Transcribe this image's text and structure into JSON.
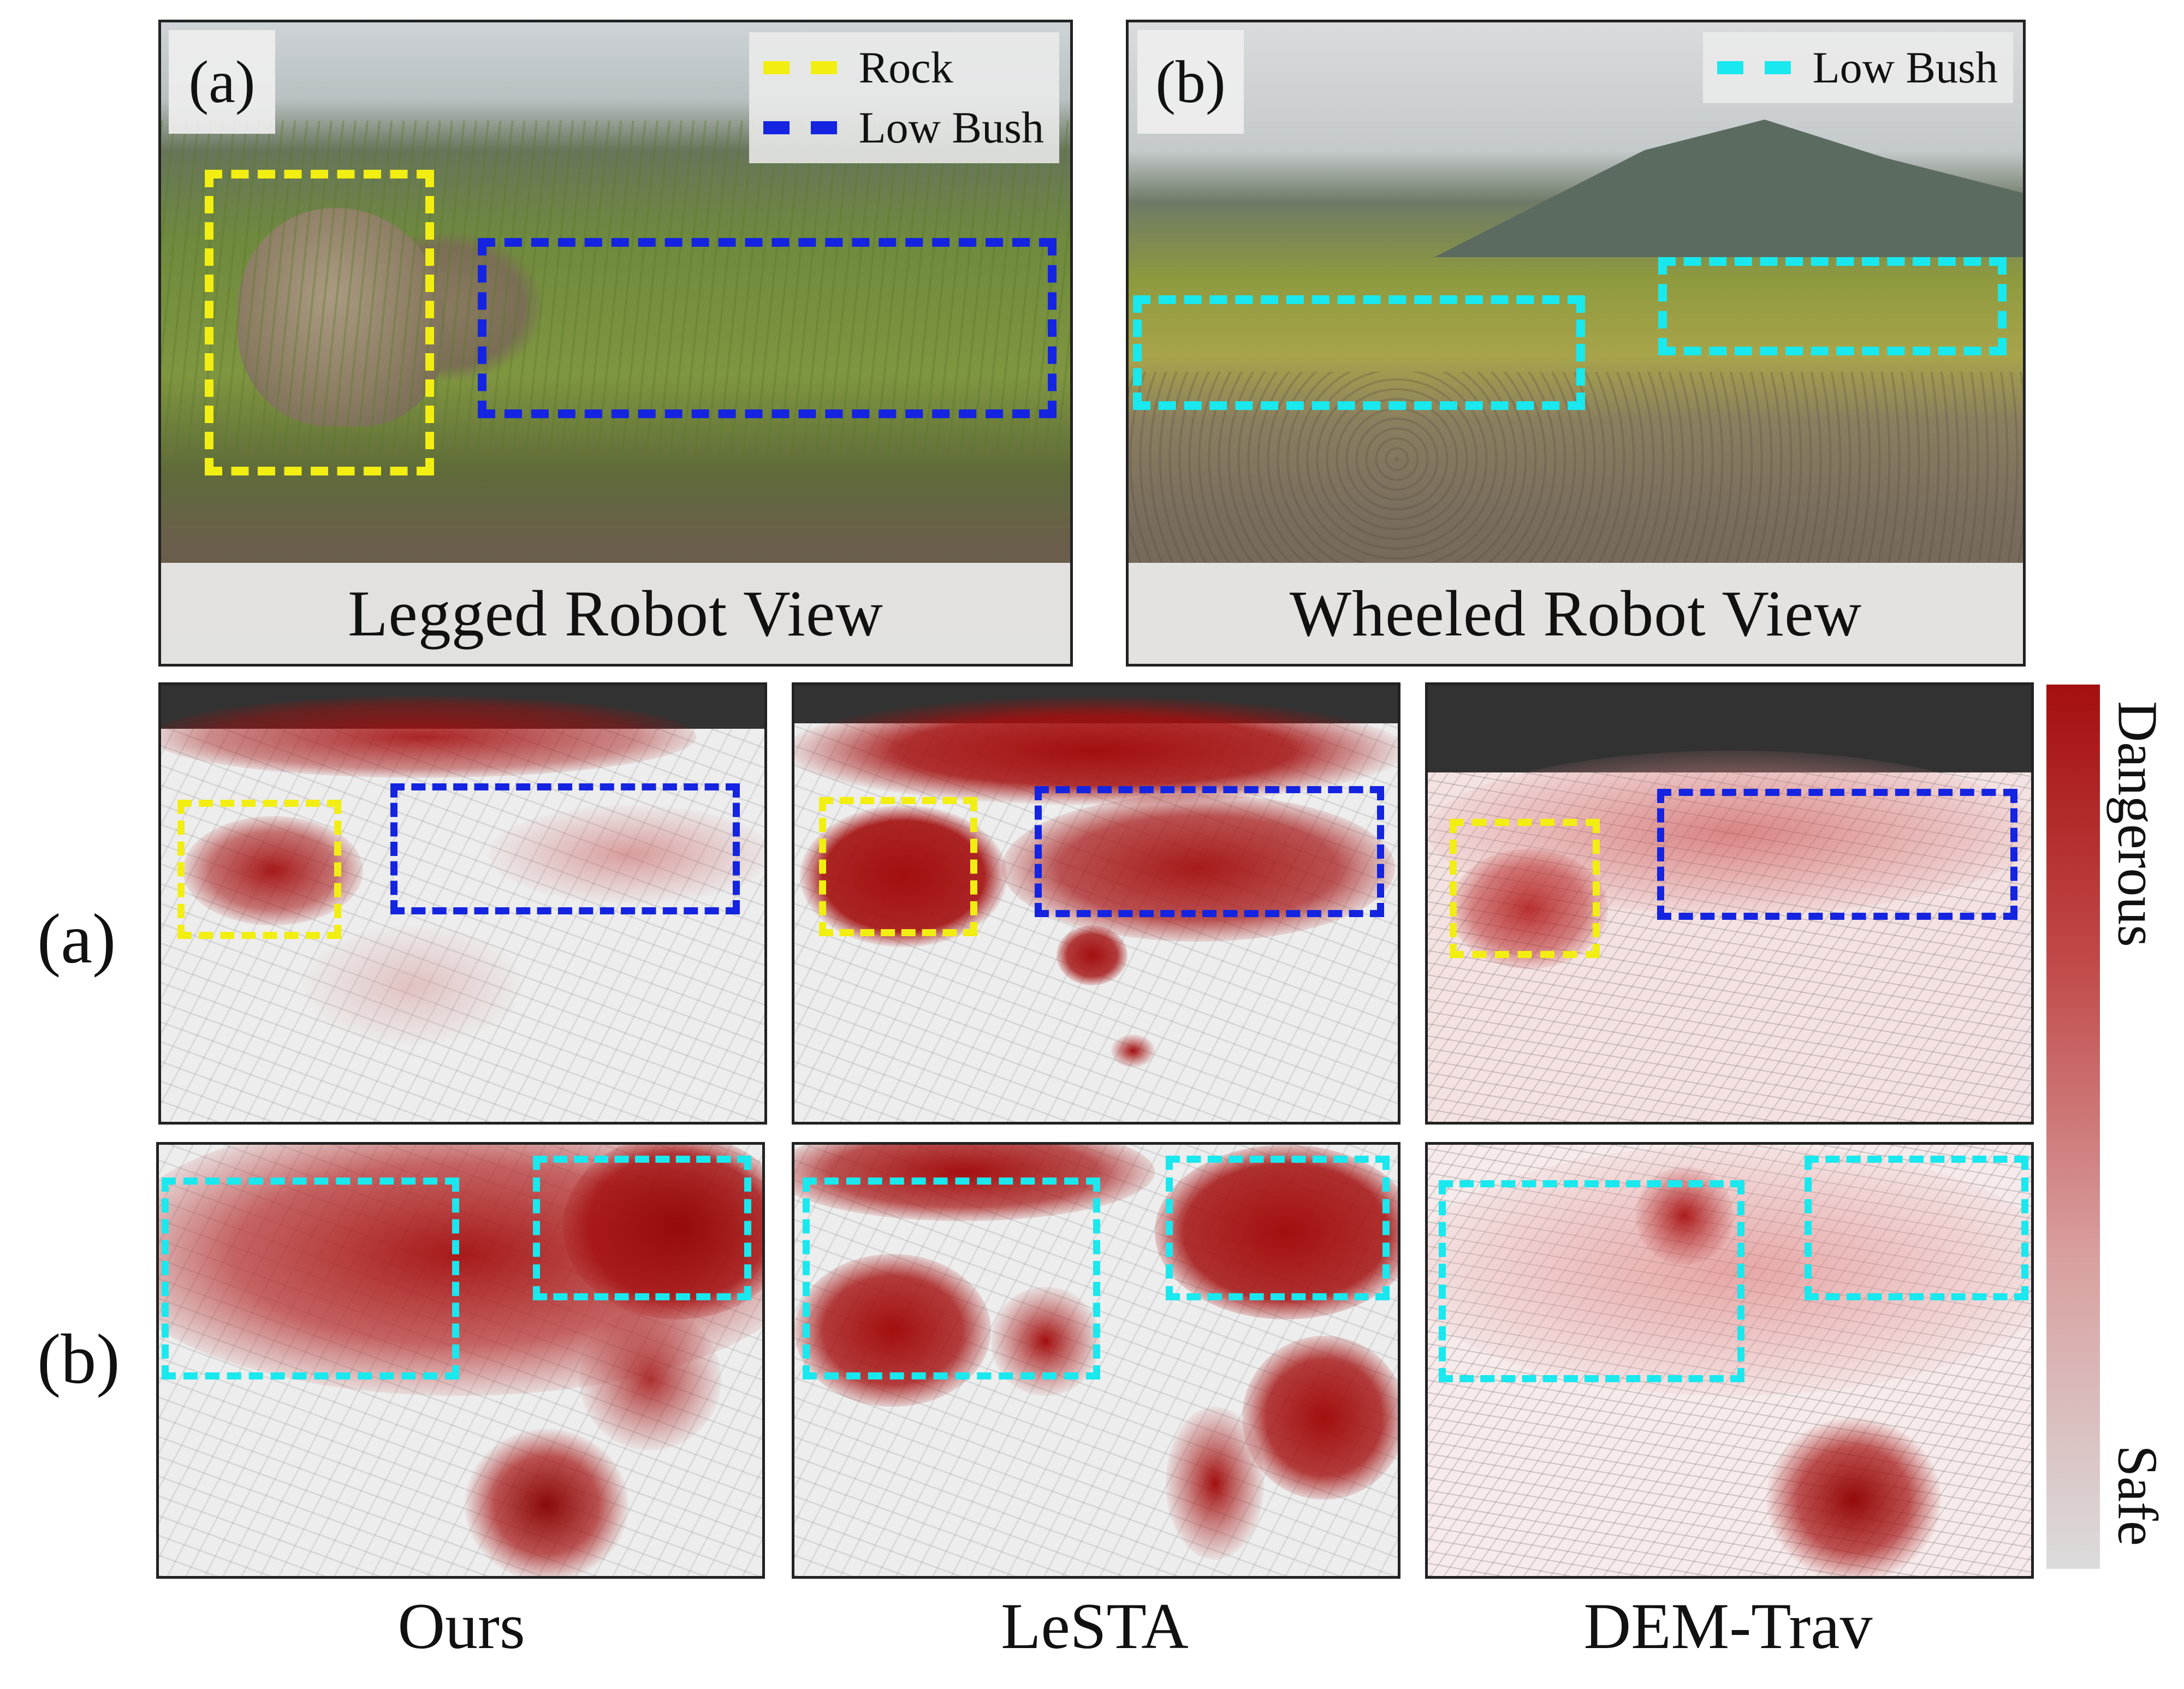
{
  "top_panels": {
    "legged": {
      "tag": "(a)",
      "caption": "Legged Robot View",
      "legend": [
        {
          "label": "Rock",
          "color": "#f2ee12"
        },
        {
          "label": "Low Bush",
          "color": "#1424e0"
        }
      ]
    },
    "wheeled": {
      "tag": "(b)",
      "caption": "Wheeled Robot View",
      "legend": [
        {
          "label": "Low Bush",
          "color": "#19e8ee"
        }
      ]
    }
  },
  "row_labels": [
    "(a)",
    "(b)"
  ],
  "method_labels": [
    "Ours",
    "LeSTA",
    "DEM-Trav"
  ],
  "colorbar": {
    "top_label": "Dangerous",
    "bottom_label": "Safe",
    "high_color": "#a40f0f",
    "low_color": "#dcdcdc"
  },
  "colors": {
    "rock_box": "#f2ee12",
    "low_bush_box_a": "#1424e0",
    "low_bush_box_b": "#19e8ee",
    "danger": "#a40f0f"
  }
}
